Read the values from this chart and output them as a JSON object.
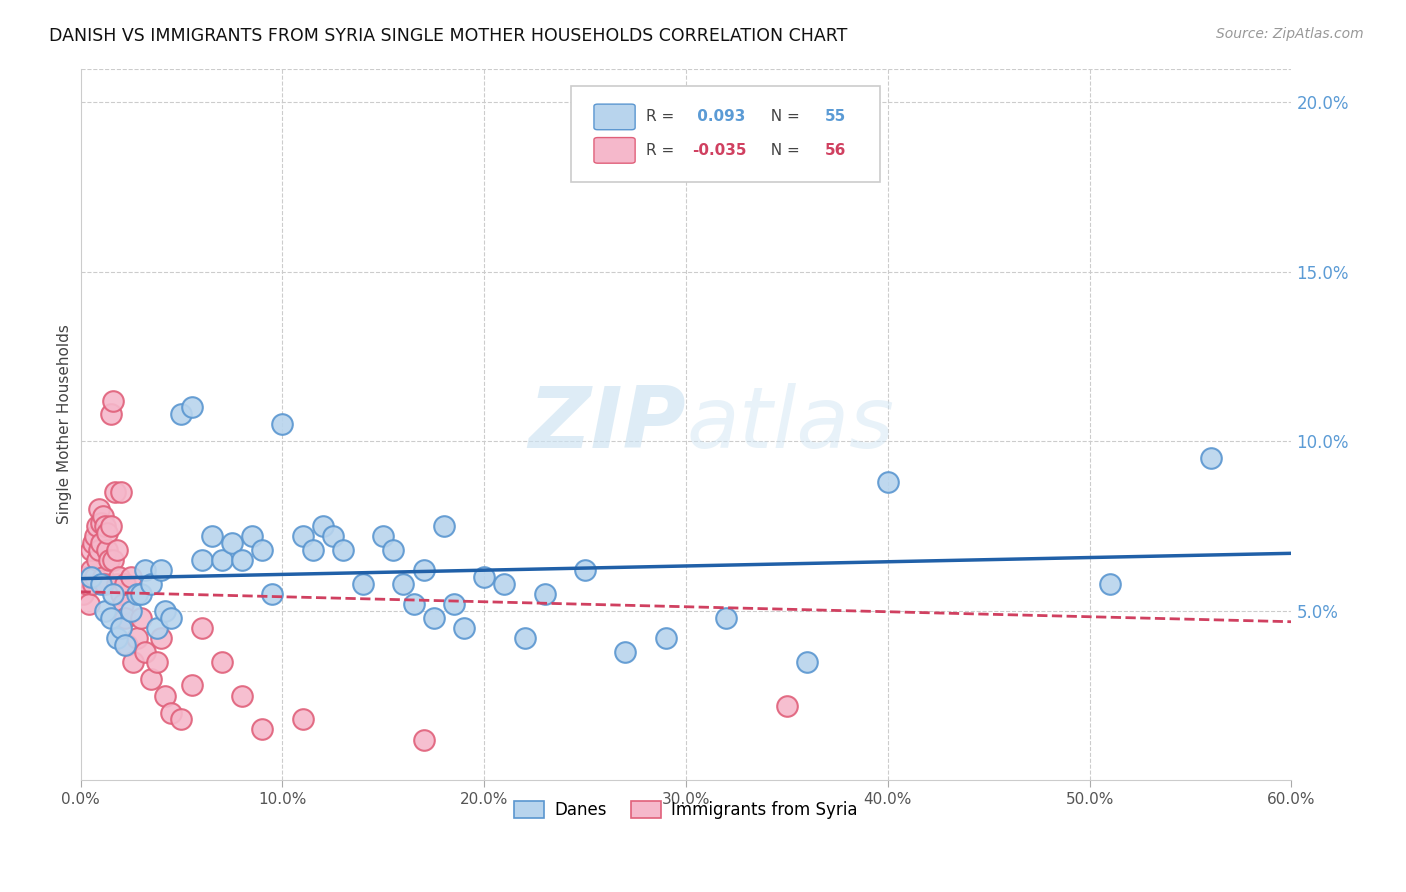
{
  "title": "DANISH VS IMMIGRANTS FROM SYRIA SINGLE MOTHER HOUSEHOLDS CORRELATION CHART",
  "source": "Source: ZipAtlas.com",
  "ylabel": "Single Mother Households",
  "x_min": 0.0,
  "x_max": 0.6,
  "y_min": 0.0,
  "y_max": 0.21,
  "x_ticks": [
    0.0,
    0.1,
    0.2,
    0.3,
    0.4,
    0.5,
    0.6
  ],
  "x_tick_labels": [
    "0.0%",
    "10.0%",
    "20.0%",
    "30.0%",
    "40.0%",
    "50.0%",
    "60.0%"
  ],
  "y_ticks_right": [
    0.05,
    0.1,
    0.15,
    0.2
  ],
  "y_tick_labels_right": [
    "5.0%",
    "10.0%",
    "15.0%",
    "20.0%"
  ],
  "danes_color": "#b8d4ed",
  "danes_edge_color": "#5a96d0",
  "syria_color": "#f5b8cb",
  "syria_edge_color": "#e0607a",
  "danes_R": 0.093,
  "danes_N": 55,
  "syria_R": -0.035,
  "syria_N": 56,
  "danes_line_color": "#2060a8",
  "syria_line_color": "#d04060",
  "watermark_zip": "ZIP",
  "watermark_atlas": "atlas",
  "danes_x": [
    0.005,
    0.01,
    0.012,
    0.015,
    0.016,
    0.018,
    0.02,
    0.022,
    0.025,
    0.028,
    0.03,
    0.032,
    0.035,
    0.038,
    0.04,
    0.042,
    0.045,
    0.05,
    0.055,
    0.06,
    0.065,
    0.07,
    0.075,
    0.08,
    0.085,
    0.09,
    0.095,
    0.1,
    0.11,
    0.115,
    0.12,
    0.125,
    0.13,
    0.14,
    0.15,
    0.155,
    0.16,
    0.165,
    0.17,
    0.175,
    0.18,
    0.185,
    0.19,
    0.2,
    0.21,
    0.22,
    0.23,
    0.25,
    0.27,
    0.29,
    0.32,
    0.36,
    0.4,
    0.51,
    0.56
  ],
  "danes_y": [
    0.06,
    0.058,
    0.05,
    0.048,
    0.055,
    0.042,
    0.045,
    0.04,
    0.05,
    0.055,
    0.055,
    0.062,
    0.058,
    0.045,
    0.062,
    0.05,
    0.048,
    0.108,
    0.11,
    0.065,
    0.072,
    0.065,
    0.07,
    0.065,
    0.072,
    0.068,
    0.055,
    0.105,
    0.072,
    0.068,
    0.075,
    0.072,
    0.068,
    0.058,
    0.072,
    0.068,
    0.058,
    0.052,
    0.062,
    0.048,
    0.075,
    0.052,
    0.045,
    0.06,
    0.058,
    0.042,
    0.055,
    0.062,
    0.038,
    0.042,
    0.048,
    0.035,
    0.088,
    0.058,
    0.095
  ],
  "syria_x": [
    0.001,
    0.002,
    0.003,
    0.004,
    0.005,
    0.005,
    0.006,
    0.006,
    0.007,
    0.007,
    0.008,
    0.008,
    0.009,
    0.009,
    0.01,
    0.01,
    0.011,
    0.011,
    0.012,
    0.012,
    0.013,
    0.013,
    0.014,
    0.015,
    0.015,
    0.016,
    0.016,
    0.017,
    0.018,
    0.018,
    0.019,
    0.02,
    0.02,
    0.021,
    0.022,
    0.022,
    0.023,
    0.025,
    0.026,
    0.028,
    0.03,
    0.032,
    0.035,
    0.038,
    0.04,
    0.042,
    0.045,
    0.05,
    0.055,
    0.06,
    0.07,
    0.08,
    0.09,
    0.11,
    0.17,
    0.35
  ],
  "syria_y": [
    0.055,
    0.06,
    0.058,
    0.052,
    0.062,
    0.068,
    0.058,
    0.07,
    0.06,
    0.072,
    0.065,
    0.075,
    0.068,
    0.08,
    0.07,
    0.076,
    0.06,
    0.078,
    0.058,
    0.075,
    0.068,
    0.073,
    0.065,
    0.075,
    0.108,
    0.065,
    0.112,
    0.085,
    0.058,
    0.068,
    0.06,
    0.055,
    0.085,
    0.052,
    0.048,
    0.058,
    0.04,
    0.06,
    0.035,
    0.042,
    0.048,
    0.038,
    0.03,
    0.035,
    0.042,
    0.025,
    0.02,
    0.018,
    0.028,
    0.045,
    0.035,
    0.025,
    0.015,
    0.018,
    0.012,
    0.022
  ]
}
